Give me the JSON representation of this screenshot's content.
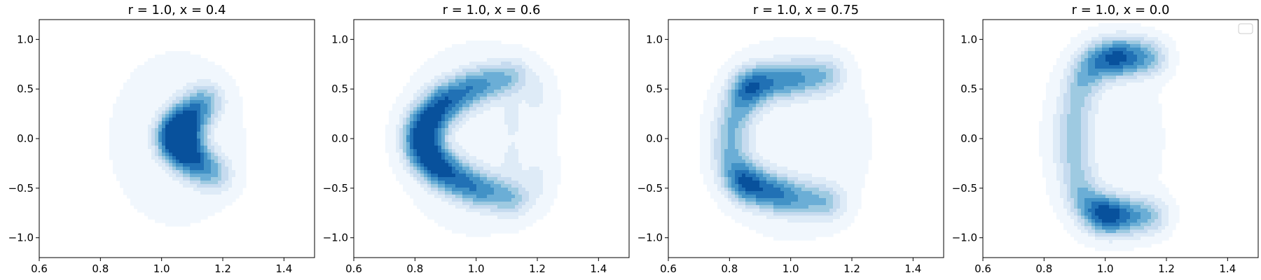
{
  "chart_data": [
    {
      "type": "contourf",
      "title": "r = 1.0, x = 0.4",
      "xlim": [
        0.6,
        1.5
      ],
      "ylim": [
        -1.2,
        1.2
      ],
      "xticks": [
        "0.6",
        "0.8",
        "1.0",
        "1.2",
        "1.4"
      ],
      "yticks": [
        "−1.0",
        "−0.5",
        "0.0",
        "0.5",
        "1.0"
      ],
      "colormap": "Blues",
      "density_ridge": [
        {
          "x": 1.15,
          "y": 0.4,
          "w": 0.3
        },
        {
          "x": 1.1,
          "y": 0.25,
          "w": 0.6
        },
        {
          "x": 1.06,
          "y": 0.1,
          "w": 1.0
        },
        {
          "x": 1.05,
          "y": 0.0,
          "w": 1.0
        },
        {
          "x": 1.07,
          "y": -0.12,
          "w": 0.85
        },
        {
          "x": 1.12,
          "y": -0.25,
          "w": 0.55
        },
        {
          "x": 1.18,
          "y": -0.38,
          "w": 0.25
        }
      ],
      "background_blob": {
        "x": 1.05,
        "y": 0.0,
        "sx": 0.42,
        "sy": 0.9,
        "w": 0.07
      }
    },
    {
      "type": "contourf",
      "title": "r = 1.0, x = 0.6",
      "xlim": [
        0.6,
        1.5
      ],
      "ylim": [
        -1.2,
        1.2
      ],
      "xticks": [
        "0.6",
        "0.8",
        "1.0",
        "1.2",
        "1.4"
      ],
      "yticks": [
        "−1.0",
        "−0.5",
        "0.0",
        "0.5",
        "1.0"
      ],
      "colormap": "Blues",
      "density_ridge": [
        {
          "x": 1.12,
          "y": 0.62,
          "w": 0.4
        },
        {
          "x": 1.0,
          "y": 0.53,
          "w": 0.7
        },
        {
          "x": 0.9,
          "y": 0.38,
          "w": 0.9
        },
        {
          "x": 0.84,
          "y": 0.18,
          "w": 0.9
        },
        {
          "x": 0.82,
          "y": 0.0,
          "w": 0.75
        },
        {
          "x": 0.84,
          "y": -0.18,
          "w": 0.9
        },
        {
          "x": 0.9,
          "y": -0.35,
          "w": 0.95
        },
        {
          "x": 1.0,
          "y": -0.5,
          "w": 0.75
        },
        {
          "x": 1.12,
          "y": -0.6,
          "w": 0.45
        }
      ],
      "secondary_ridge": [
        {
          "x": 1.2,
          "y": 0.45,
          "w": 0.12
        },
        {
          "x": 1.12,
          "y": 0.2,
          "w": 0.08
        },
        {
          "x": 1.12,
          "y": -0.22,
          "w": 0.08
        },
        {
          "x": 1.2,
          "y": -0.42,
          "w": 0.12
        }
      ],
      "background_blob": {
        "x": 1.0,
        "y": 0.0,
        "sx": 0.5,
        "sy": 1.0,
        "w": 0.07
      }
    },
    {
      "type": "contourf",
      "title": "r = 1.0, x = 0.75",
      "xlim": [
        0.6,
        1.5
      ],
      "ylim": [
        -1.2,
        1.2
      ],
      "xticks": [
        "0.6",
        "0.8",
        "1.0",
        "1.2",
        "1.4"
      ],
      "yticks": [
        "−1.0",
        "−0.5",
        "0.0",
        "0.5",
        "1.0"
      ],
      "colormap": "Blues",
      "density_ridge": [
        {
          "x": 1.12,
          "y": 0.64,
          "w": 0.4
        },
        {
          "x": 1.0,
          "y": 0.6,
          "w": 0.7
        },
        {
          "x": 0.88,
          "y": 0.55,
          "w": 0.9
        },
        {
          "x": 0.84,
          "y": 0.4,
          "w": 0.4
        },
        {
          "x": 0.81,
          "y": 0.15,
          "w": 0.28
        },
        {
          "x": 0.8,
          "y": -0.1,
          "w": 0.28
        },
        {
          "x": 0.82,
          "y": -0.35,
          "w": 0.4
        },
        {
          "x": 0.87,
          "y": -0.48,
          "w": 1.0
        },
        {
          "x": 0.98,
          "y": -0.58,
          "w": 0.8
        },
        {
          "x": 1.12,
          "y": -0.64,
          "w": 0.45
        }
      ],
      "background_blob": {
        "x": 1.0,
        "y": 0.0,
        "sx": 0.5,
        "sy": 1.05,
        "w": 0.07
      }
    },
    {
      "type": "contourf",
      "title": "r = 1.0, x = 0.0",
      "xlim": [
        0.6,
        1.5
      ],
      "ylim": [
        -1.2,
        1.2
      ],
      "xticks": [
        "0.6",
        "0.8",
        "1.0",
        "1.2",
        "1.4"
      ],
      "yticks": [
        "−1.0",
        "−0.5",
        "0.0",
        "0.5",
        "1.0"
      ],
      "colormap": "Blues",
      "legend": "top-right",
      "density_ridge": [
        {
          "x": 1.15,
          "y": 0.82,
          "w": 0.4
        },
        {
          "x": 1.05,
          "y": 0.82,
          "w": 1.0
        },
        {
          "x": 0.97,
          "y": 0.78,
          "w": 0.55
        },
        {
          "x": 0.92,
          "y": 0.55,
          "w": 0.3
        },
        {
          "x": 0.9,
          "y": 0.25,
          "w": 0.22
        },
        {
          "x": 0.89,
          "y": 0.0,
          "w": 0.22
        },
        {
          "x": 0.9,
          "y": -0.25,
          "w": 0.22
        },
        {
          "x": 0.92,
          "y": -0.55,
          "w": 0.3
        },
        {
          "x": 0.97,
          "y": -0.75,
          "w": 0.55
        },
        {
          "x": 1.03,
          "y": -0.78,
          "w": 1.0
        },
        {
          "x": 1.15,
          "y": -0.78,
          "w": 0.4
        }
      ],
      "background_blob": {
        "x": 1.0,
        "y": 0.0,
        "sx": 0.4,
        "sy": 1.1,
        "w": 0.06
      }
    }
  ]
}
